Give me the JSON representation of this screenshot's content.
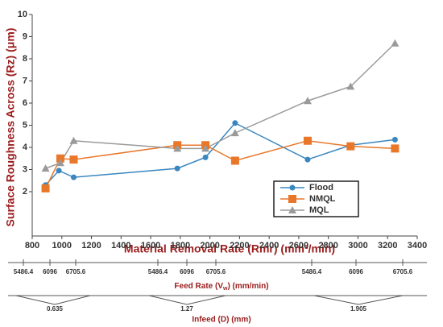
{
  "chart_data": {
    "type": "line",
    "x_label": "Material Removal Rate (Rmr) (mm³/min)",
    "y_label": "Surface Roughness Across (Rz) (μm)",
    "xlim": [
      800,
      3400
    ],
    "xticks": [
      800,
      1000,
      1200,
      1400,
      1600,
      1800,
      2000,
      2200,
      2400,
      2600,
      2800,
      3000,
      3200,
      3400
    ],
    "ylim": [
      0,
      10
    ],
    "yticks": [
      2,
      3,
      4,
      5,
      6,
      7,
      8,
      9,
      10
    ],
    "legend": "lower-right",
    "series": [
      {
        "name": "Flood",
        "color": "#3a87c0",
        "marker": "circle",
        "x": [
          890,
          980,
          1080,
          1780,
          1970,
          2170,
          2660,
          2950,
          3250
        ],
        "values": [
          2.3,
          2.95,
          2.65,
          3.05,
          3.55,
          5.1,
          3.45,
          4.1,
          4.35
        ]
      },
      {
        "name": "NMQL",
        "color": "#e8772a",
        "marker": "square",
        "x": [
          890,
          990,
          1080,
          1780,
          1970,
          2170,
          2660,
          2950,
          3250
        ],
        "values": [
          2.15,
          3.5,
          3.45,
          4.1,
          4.1,
          3.4,
          4.3,
          4.05,
          3.95
        ]
      },
      {
        "name": "MQL",
        "color": "#9a9a9a",
        "marker": "triangle",
        "x": [
          890,
          990,
          1080,
          1780,
          1970,
          2170,
          2660,
          2950,
          3250
        ],
        "values": [
          3.05,
          3.3,
          4.3,
          3.95,
          3.95,
          4.65,
          6.1,
          6.75,
          8.7
        ]
      }
    ],
    "feed_rate": {
      "labels": [
        "5486.4",
        "6096",
        "6705.6",
        "5486.4",
        "6096",
        "6705.6",
        "5486.4",
        "6096",
        "6705.6"
      ],
      "title_parts": [
        "Feed Rate (V",
        "w",
        ") (mm/min)"
      ]
    },
    "infeed": {
      "labels": [
        "0.635",
        "1.27",
        "1.905"
      ],
      "title": "Infeed (D) (mm)"
    }
  }
}
